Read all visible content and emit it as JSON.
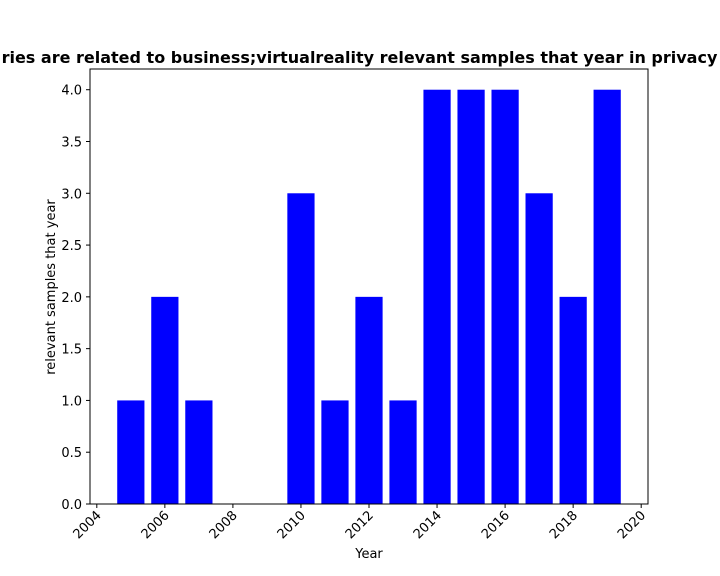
{
  "chart_data": {
    "type": "bar",
    "title": "ries are related to business;virtualreality relevant samples that year in privacy p",
    "xlabel": "Year",
    "ylabel": "relevant samples that year",
    "x": [
      2005,
      2006,
      2007,
      2010,
      2011,
      2012,
      2013,
      2014,
      2015,
      2016,
      2017,
      2018,
      2019
    ],
    "values": [
      1,
      2,
      1,
      3,
      1,
      2,
      1,
      4,
      4,
      4,
      3,
      2,
      4
    ],
    "xlim": [
      2003.8,
      2020.2
    ],
    "ylim": [
      0,
      4.2
    ],
    "xticks": [
      "2004",
      "2006",
      "2008",
      "2010",
      "2012",
      "2014",
      "2016",
      "2018",
      "2020"
    ],
    "yticks": [
      "0.0",
      "0.5",
      "1.0",
      "1.5",
      "2.0",
      "2.5",
      "3.0",
      "3.5",
      "4.0"
    ],
    "bar_color": "#0000ff",
    "grid": false,
    "legend": "none"
  }
}
